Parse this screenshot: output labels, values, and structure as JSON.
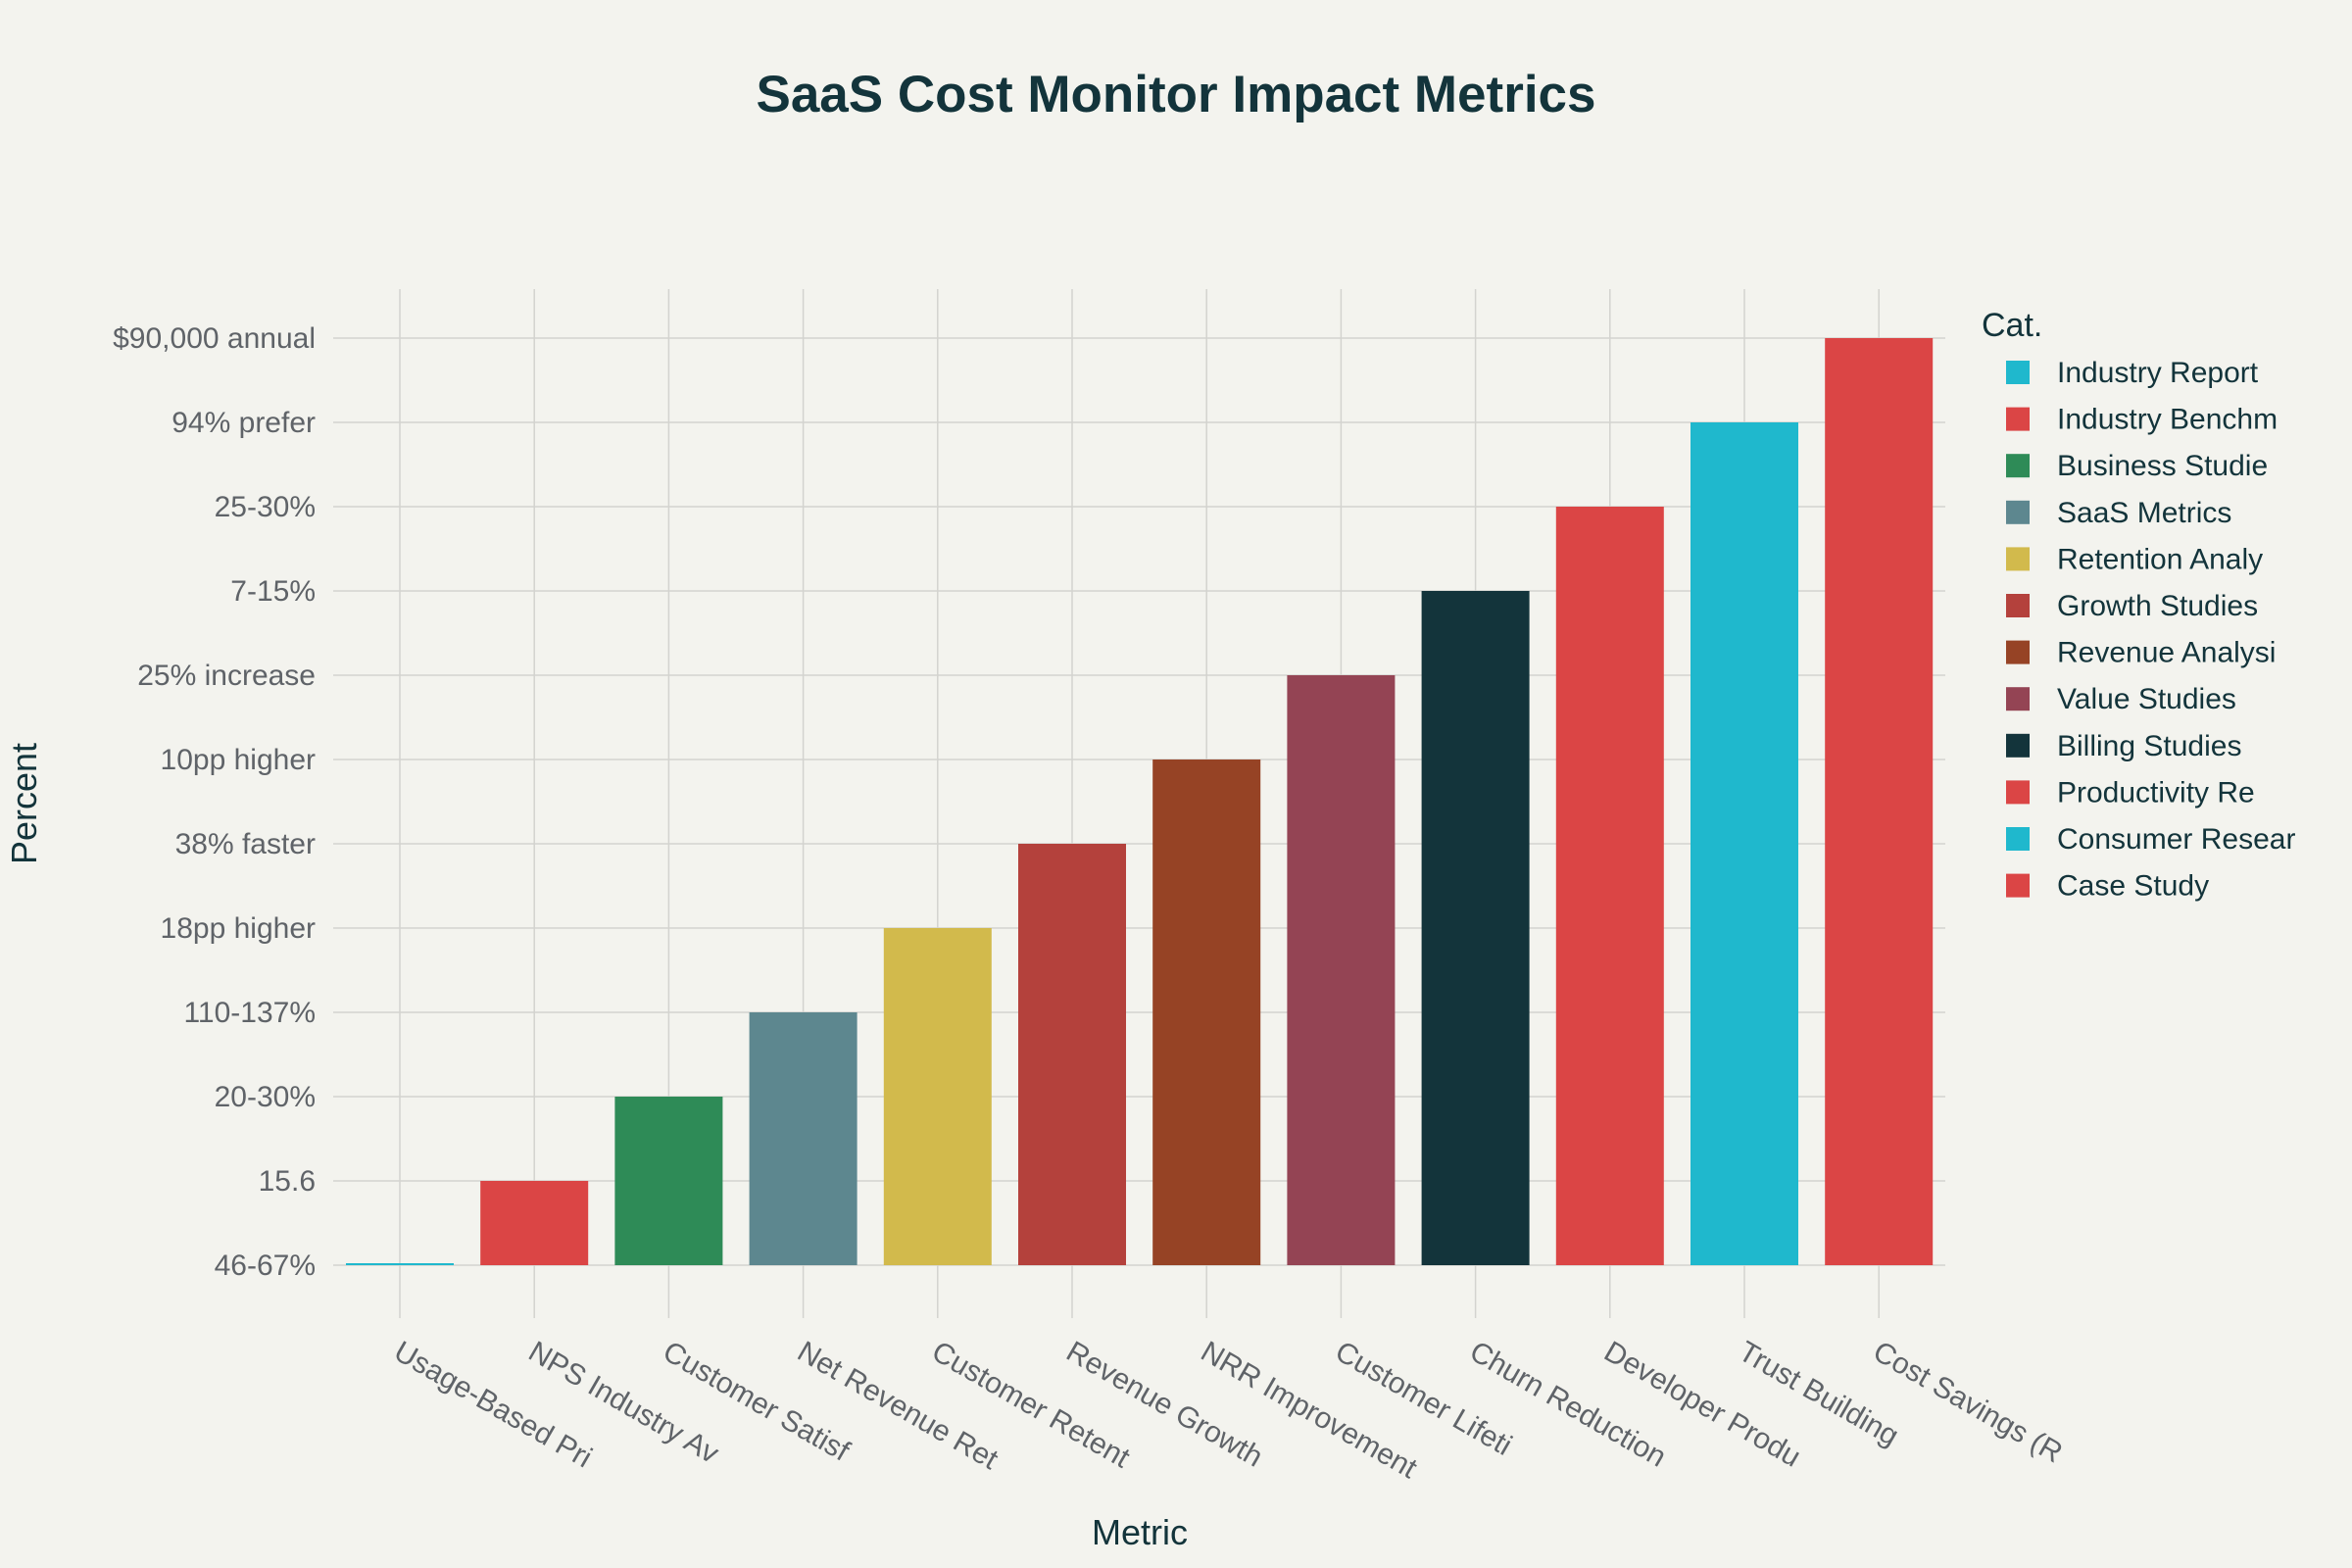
{
  "chart_data": {
    "type": "bar",
    "title": "SaaS Cost Monitor Impact Metrics",
    "xlabel": "Metric",
    "ylabel": "Percent",
    "categories": [
      "Usage-Based Pri",
      "NPS Industry Av",
      "Customer Satisf",
      "Net Revenue Ret",
      "Customer Retent",
      "Revenue Growth",
      "NRR Improvement",
      "Customer Lifeti",
      "Churn Reduction",
      "Developer Produ",
      "Trust Building",
      "Cost Savings (R"
    ],
    "y_tick_labels": [
      "46-67%",
      "15.6",
      "20-30%",
      "110-137%",
      "18pp higher",
      "38% faster",
      "10pp higher",
      "25% increase",
      "7-15%",
      "25-30%",
      "94% prefer",
      "$90,000 annual"
    ],
    "values": [
      "46-67%",
      "15.6",
      "20-30%",
      "110-137%",
      "18pp higher",
      "38% faster",
      "10pp higher",
      "25% increase",
      "7-15%",
      "25-30%",
      "94% prefer",
      "$90,000 annual"
    ],
    "bar_categories": [
      "Industry Report",
      "Industry Benchm",
      "Business Studie",
      "SaaS Metrics",
      "Retention Analy",
      "Growth Studies",
      "Revenue Analysi",
      "Value Studies",
      "Billing Studies",
      "Productivity Re",
      "Consumer Resear",
      "Case Study"
    ],
    "legend": {
      "title": "Cat.",
      "placement": "right",
      "entries": [
        {
          "name": "Industry Report",
          "color": "#1fb8cd"
        },
        {
          "name": "Industry Benchm",
          "color": "#db4545"
        },
        {
          "name": "Business Studie",
          "color": "#2e8b57"
        },
        {
          "name": "SaaS Metrics",
          "color": "#5d878f"
        },
        {
          "name": "Retention Analy",
          "color": "#d2ba4c"
        },
        {
          "name": "Growth Studies",
          "color": "#b4413c"
        },
        {
          "name": "Revenue Analysi",
          "color": "#964325"
        },
        {
          "name": "Value Studies",
          "color": "#944454"
        },
        {
          "name": "Billing Studies",
          "color": "#13343b"
        },
        {
          "name": "Productivity Re",
          "color": "#db4545"
        },
        {
          "name": "Consumer Resear",
          "color": "#1fb8cd"
        },
        {
          "name": "Case Study",
          "color": "#db4545"
        }
      ]
    },
    "y_axis_type": "category",
    "grid": true
  }
}
